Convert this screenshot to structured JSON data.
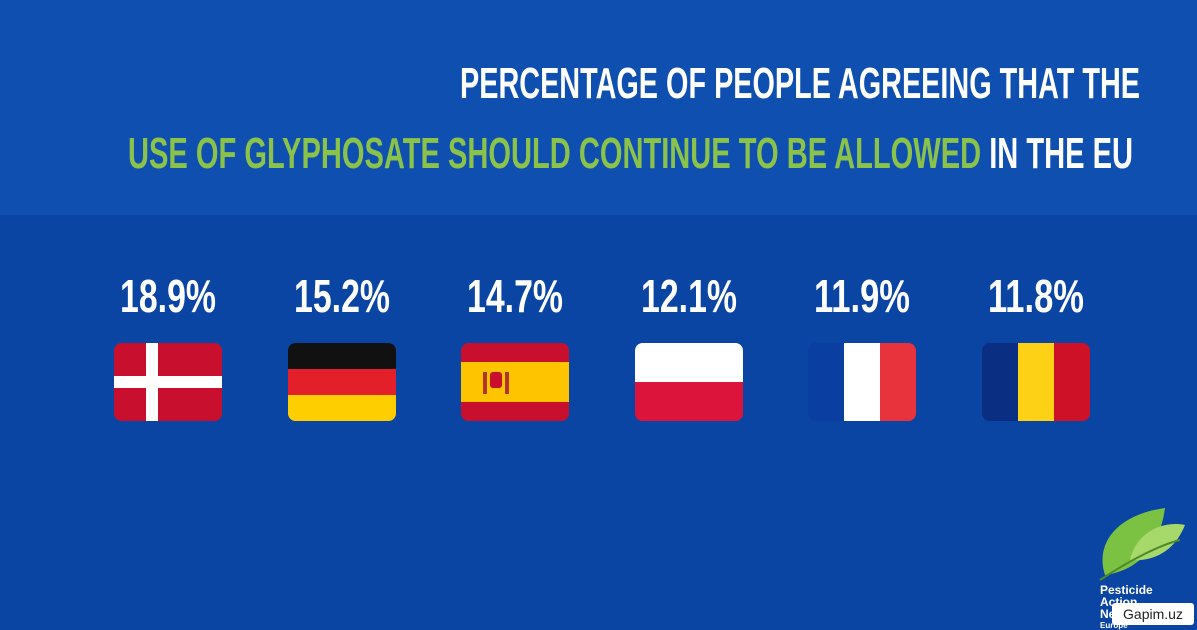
{
  "title": {
    "line1": "PERCENTAGE OF PEOPLE AGREEING THAT THE",
    "line2_highlight": "USE OF GLYPHOSATE SHOULD CONTINUE TO BE ALLOWED",
    "line2_rest": " IN THE EU"
  },
  "stats": [
    "18.9%",
    "15.2%",
    "14.7%",
    "12.1%",
    "11.9%",
    "11.8%"
  ],
  "logo": [
    "Pesticide",
    "Action",
    "Network",
    "Europe"
  ],
  "watermark": "Gapim.uz"
}
